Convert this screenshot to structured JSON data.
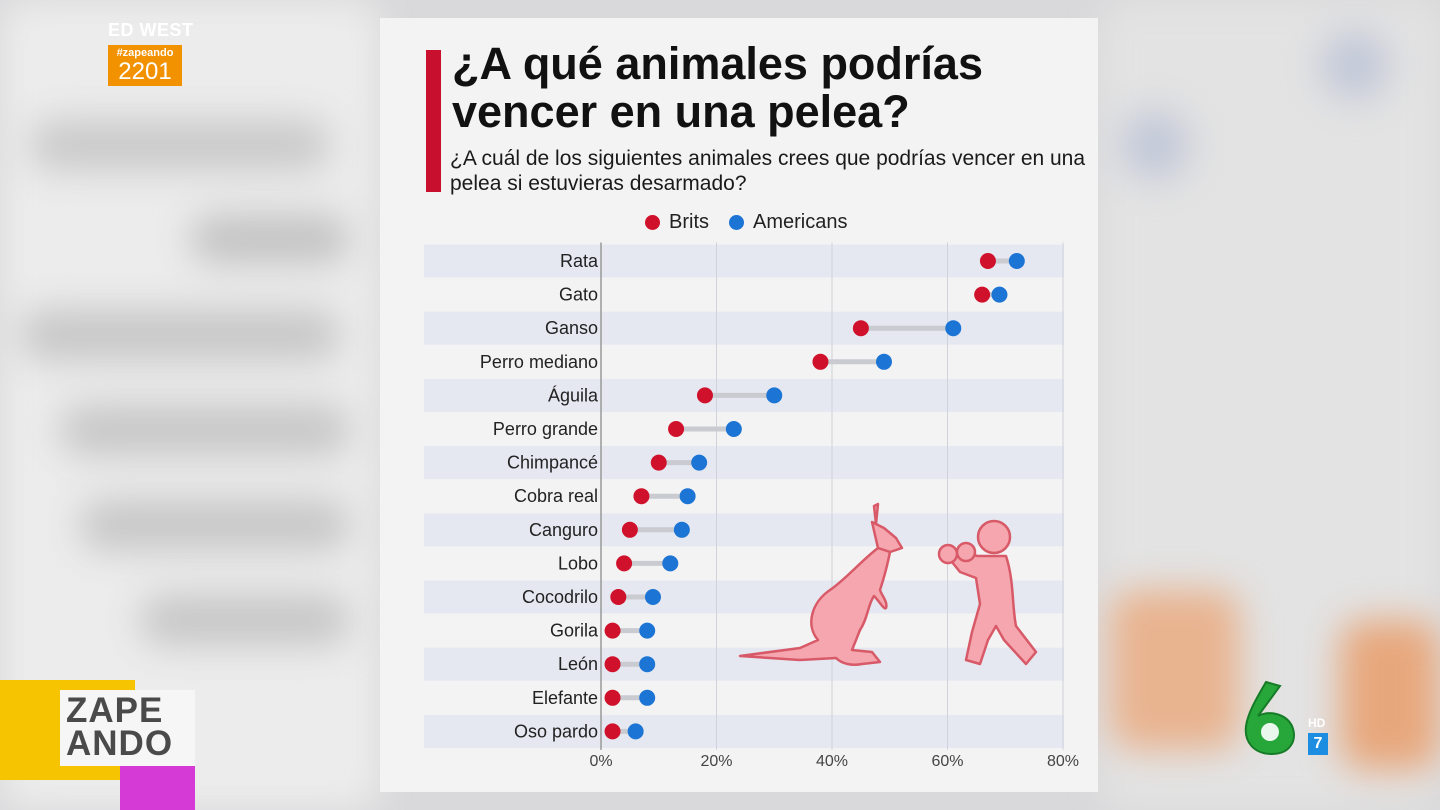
{
  "overlay": {
    "brand_top": "ED WEST",
    "hashtag": "#zapeando",
    "episode": "2201",
    "show_logo_line1": "ZAPE",
    "show_logo_line2": "ANDO",
    "channel_hd": "HD",
    "channel_number": "7",
    "channel_logo_icon": "la-sexta-logo"
  },
  "colors": {
    "brits": "#d0112b",
    "americans": "#1c74d4",
    "accent_bar": "#c8102e"
  },
  "chart_data": {
    "type": "dumbbell",
    "title": "¿A qué animales podrías vencer en una pelea?",
    "subtitle": "¿A cuál de los siguientes animales crees que podrías vencer en una pelea si estuvieras desarmado?",
    "legend_position": "top",
    "grid": true,
    "xlim": [
      0,
      80
    ],
    "ticks": [
      "0%",
      "20%",
      "40%",
      "60%",
      "80%"
    ],
    "categories": [
      "Rata",
      "Gato",
      "Ganso",
      "Perro mediano",
      "Águila",
      "Perro grande",
      "Chimpancé",
      "Cobra real",
      "Canguro",
      "Lobo",
      "Cocodrilo",
      "Gorila",
      "León",
      "Elefante",
      "Oso pardo"
    ],
    "series": [
      {
        "name": "Brits",
        "values": [
          67,
          66,
          45,
          38,
          18,
          13,
          10,
          7,
          5,
          4,
          3,
          2,
          2,
          2,
          2
        ]
      },
      {
        "name": "Americans",
        "values": [
          72,
          69,
          61,
          49,
          30,
          23,
          17,
          15,
          14,
          12,
          9,
          8,
          8,
          8,
          6
        ]
      }
    ],
    "illustrations": [
      "kangaroo-icon",
      "boxer-icon"
    ]
  }
}
